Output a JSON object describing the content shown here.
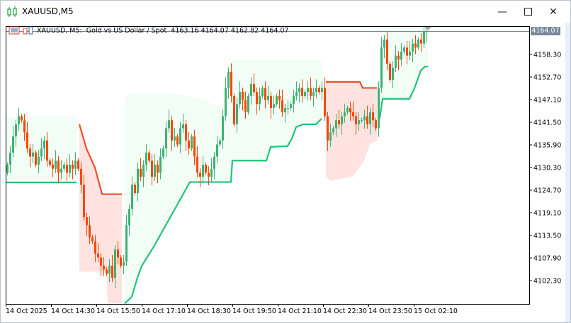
{
  "window": {
    "title": "XAUUSD,M5",
    "minimize_icon": "minimize-icon",
    "maximize_icon": "maximize-icon",
    "close_icon": "close-icon"
  },
  "chart_header": {
    "symbol_period": "XAUUSD, M5:",
    "description": "Gold vs US Dollar / Spot",
    "ohlc": "4163.16 4164.07 4162.82 4164.07"
  },
  "colors": {
    "bull": "#3cb371",
    "bear": "#ff4500",
    "support": "#22c37a",
    "resistance": "#e8502c",
    "support_fill": "#f2fdf6",
    "resistance_fill": "#ffe3e0",
    "bid_line": "#778899"
  },
  "chart_data": {
    "type": "candlestick",
    "symbol": "XAUUSD",
    "timeframe": "M5",
    "bid": "4164.07",
    "price_ticks": [
      "4158.30",
      "4152.70",
      "4147.10",
      "4141.50",
      "4135.90",
      "4130.30",
      "4124.70",
      "4119.10",
      "4113.50",
      "4107.90",
      "4102.30"
    ],
    "time_ticks": [
      "14 Oct 2025",
      "14 Oct 14:30",
      "14 Oct 15:50",
      "14 Oct 17:10",
      "14 Oct 18:30",
      "14 Oct 19:50",
      "14 Oct 21:10",
      "14 Oct 22:30",
      "14 Oct 23:50",
      "15 Oct 02:10"
    ],
    "closes": [
      4131,
      4134,
      4138,
      4141,
      4143,
      4142,
      4139,
      4135,
      4133,
      4134,
      4131,
      4133,
      4135,
      4137,
      4132,
      4131,
      4130,
      4132,
      4129,
      4130,
      4131,
      4129,
      4131,
      4130,
      4132,
      4130,
      4126,
      4118,
      4116,
      4113,
      4112,
      4109,
      4108,
      4106,
      4105,
      4104,
      4106,
      4103,
      4110,
      4108,
      4106,
      4107,
      4116,
      4120,
      4126,
      4124,
      4130,
      4128,
      4131,
      4134,
      4132,
      4128,
      4131,
      4129,
      4133,
      4135,
      4140,
      4142,
      4137,
      4138,
      4136,
      4140,
      4141,
      4137,
      4135,
      4138,
      4133,
      4129,
      4128,
      4131,
      4129,
      4128,
      4130,
      4133,
      4136,
      4137,
      4143,
      4150,
      4154,
      4148,
      4141,
      4146,
      4149,
      4147,
      4144,
      4148,
      4151,
      4149,
      4146,
      4148,
      4150,
      4147,
      4148,
      4145,
      4146,
      4148,
      4147,
      4144,
      4145,
      4145,
      4146,
      4148,
      4149,
      4150,
      4148,
      4149,
      4150,
      4148,
      4149,
      4150,
      4149,
      4150,
      4143,
      4137,
      4139,
      4140,
      4142,
      4141,
      4143,
      4144,
      4145,
      4144,
      4143,
      4141,
      4142,
      4142,
      4143,
      4141,
      4144,
      4142,
      4140,
      4150,
      4160,
      4162,
      4156,
      4152,
      4155,
      4158,
      4157,
      4159,
      4160,
      4158,
      4159,
      4161,
      4160,
      4162,
      4161,
      4164,
      4164.07
    ],
    "support_segments": [
      [
        [
          -0.5,
          4126.6
        ],
        [
          24.5,
          4126.6
        ]
      ],
      [
        [
          41.5,
          4096.6
        ],
        [
          44,
          4098.3
        ],
        [
          46,
          4103
        ],
        [
          47.5,
          4105.9
        ],
        [
          52,
          4111
        ],
        [
          57.5,
          4117.9
        ],
        [
          60,
          4121
        ],
        [
          64.5,
          4126.7
        ],
        [
          79,
          4126.7
        ],
        [
          79.5,
          4132
        ],
        [
          91.5,
          4132
        ],
        [
          93,
          4135.4
        ],
        [
          99,
          4135.6
        ],
        [
          100.5,
          4137.5
        ],
        [
          102,
          4140.3
        ],
        [
          104.5,
          4141
        ],
        [
          109,
          4141
        ],
        [
          111,
          4142.4
        ]
      ],
      [
        [
          131.5,
          4142.4
        ],
        [
          132.5,
          4147.3
        ],
        [
          142,
          4147.3
        ],
        [
          143.8,
          4150
        ],
        [
          146,
          4154.3
        ],
        [
          147.5,
          4155.3
        ],
        [
          148.5,
          4155.3
        ]
      ]
    ],
    "support_zone_tops": [
      [
        [
          -0.5,
          4143
        ],
        [
          24.5,
          4143
        ]
      ],
      [
        [
          41.5,
          4146.5
        ],
        [
          43,
          4148.5
        ],
        [
          60,
          4148.5
        ],
        [
          71,
          4147
        ],
        [
          72,
          4145.8
        ],
        [
          78,
          4145.8
        ],
        [
          79,
          4157
        ],
        [
          111,
          4157
        ]
      ],
      [
        [
          131.5,
          4166
        ],
        [
          148.5,
          4166
        ]
      ]
    ],
    "resistance_segments": [
      [
        [
          25.5,
          4141
        ],
        [
          28,
          4135
        ],
        [
          31,
          4130.3
        ],
        [
          33.5,
          4123.7
        ],
        [
          40.5,
          4123.7
        ]
      ],
      [
        [
          112.5,
          4151.5
        ],
        [
          124.5,
          4151.5
        ],
        [
          125.5,
          4150
        ],
        [
          130.5,
          4150
        ]
      ]
    ],
    "resistance_zone_bottoms": [
      [
        [
          25.5,
          4104.5
        ],
        [
          35,
          4104.5
        ],
        [
          35.5,
          4096.6
        ],
        [
          40.5,
          4096.6
        ]
      ],
      [
        [
          112.5,
          4128
        ],
        [
          114,
          4127
        ],
        [
          122,
          4128
        ],
        [
          126,
          4132
        ],
        [
          128,
          4136
        ],
        [
          130.5,
          4137
        ]
      ]
    ]
  }
}
